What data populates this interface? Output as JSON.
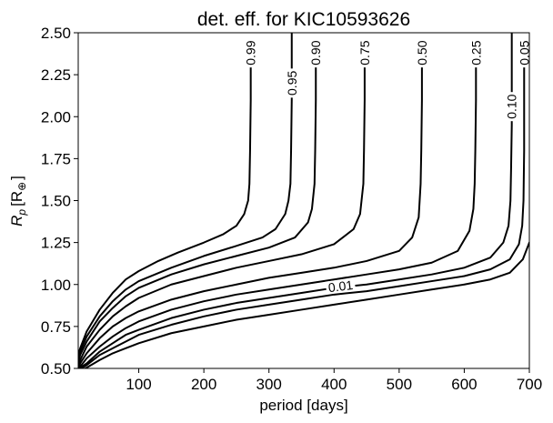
{
  "chart_data": {
    "type": "line",
    "title": "det. eff. for KIC10593626",
    "xlabel": "period [days]",
    "ylabel_text": "R",
    "ylabel_sub": "p",
    "ylabel_unit": "[R",
    "ylabel_unit_sub": "⊕",
    "ylabel_close": "]",
    "xlim": [
      7,
      700
    ],
    "ylim": [
      0.5,
      2.5
    ],
    "x_ticks": [
      100,
      200,
      300,
      400,
      500,
      600,
      700
    ],
    "x_tick_labels": [
      "100",
      "200",
      "300",
      "400",
      "500",
      "600",
      "700"
    ],
    "y_ticks": [
      0.5,
      0.75,
      1.0,
      1.25,
      1.5,
      1.75,
      2.0,
      2.25,
      2.5
    ],
    "y_tick_labels": [
      "0.50",
      "0.75",
      "1.00",
      "1.25",
      "1.50",
      "1.75",
      "2.00",
      "2.25",
      "2.50"
    ],
    "grid": false,
    "series": [
      {
        "name": "0.99",
        "period_asymptote": 272,
        "points": [
          [
            7,
            0.58
          ],
          [
            10,
            0.62
          ],
          [
            20,
            0.72
          ],
          [
            40,
            0.85
          ],
          [
            60,
            0.95
          ],
          [
            80,
            1.03
          ],
          [
            100,
            1.08
          ],
          [
            130,
            1.14
          ],
          [
            160,
            1.19
          ],
          [
            200,
            1.25
          ],
          [
            230,
            1.3
          ],
          [
            250,
            1.35
          ],
          [
            262,
            1.42
          ],
          [
            268,
            1.5
          ],
          [
            270,
            1.6
          ],
          [
            271,
            1.8
          ],
          [
            272,
            2.1
          ],
          [
            272,
            2.3
          ]
        ],
        "label_pos": [
          272,
          2.38
        ]
      },
      {
        "name": "0.95",
        "period_asymptote": 335,
        "points": [
          [
            7,
            0.55
          ],
          [
            10,
            0.6
          ],
          [
            20,
            0.69
          ],
          [
            40,
            0.81
          ],
          [
            60,
            0.9
          ],
          [
            80,
            0.97
          ],
          [
            100,
            1.02
          ],
          [
            150,
            1.1
          ],
          [
            200,
            1.17
          ],
          [
            250,
            1.23
          ],
          [
            290,
            1.28
          ],
          [
            310,
            1.33
          ],
          [
            325,
            1.42
          ],
          [
            330,
            1.5
          ],
          [
            333,
            1.6
          ],
          [
            334,
            1.8
          ],
          [
            335,
            2.1
          ],
          [
            335,
            2.5
          ]
        ],
        "label_pos": [
          335,
          2.2
        ]
      },
      {
        "name": "0.90",
        "period_asymptote": 372,
        "points": [
          [
            7,
            0.54
          ],
          [
            10,
            0.58
          ],
          [
            20,
            0.66
          ],
          [
            40,
            0.78
          ],
          [
            60,
            0.86
          ],
          [
            80,
            0.93
          ],
          [
            100,
            0.98
          ],
          [
            150,
            1.06
          ],
          [
            200,
            1.12
          ],
          [
            250,
            1.17
          ],
          [
            300,
            1.22
          ],
          [
            340,
            1.28
          ],
          [
            360,
            1.37
          ],
          [
            366,
            1.45
          ],
          [
            370,
            1.6
          ],
          [
            371,
            1.8
          ],
          [
            372,
            2.1
          ],
          [
            372,
            2.3
          ]
        ],
        "label_pos": [
          372,
          2.38
        ]
      },
      {
        "name": "0.75",
        "period_asymptote": 447,
        "points": [
          [
            7,
            0.52
          ],
          [
            10,
            0.55
          ],
          [
            20,
            0.63
          ],
          [
            40,
            0.73
          ],
          [
            60,
            0.81
          ],
          [
            80,
            0.87
          ],
          [
            100,
            0.92
          ],
          [
            150,
            1.0
          ],
          [
            200,
            1.05
          ],
          [
            250,
            1.1
          ],
          [
            300,
            1.14
          ],
          [
            350,
            1.18
          ],
          [
            400,
            1.24
          ],
          [
            430,
            1.33
          ],
          [
            440,
            1.42
          ],
          [
            445,
            1.6
          ],
          [
            446,
            1.8
          ],
          [
            447,
            2.1
          ],
          [
            447,
            2.3
          ]
        ],
        "label_pos": [
          447,
          2.38
        ]
      },
      {
        "name": "0.50",
        "period_asymptote": 535,
        "points": [
          [
            7,
            0.5
          ],
          [
            10,
            0.53
          ],
          [
            20,
            0.59
          ],
          [
            40,
            0.68
          ],
          [
            60,
            0.75
          ],
          [
            80,
            0.8
          ],
          [
            100,
            0.84
          ],
          [
            150,
            0.91
          ],
          [
            200,
            0.96
          ],
          [
            250,
            1.0
          ],
          [
            300,
            1.04
          ],
          [
            350,
            1.07
          ],
          [
            400,
            1.1
          ],
          [
            450,
            1.14
          ],
          [
            500,
            1.2
          ],
          [
            520,
            1.28
          ],
          [
            530,
            1.4
          ],
          [
            533,
            1.6
          ],
          [
            534,
            1.8
          ],
          [
            535,
            2.1
          ],
          [
            535,
            2.3
          ]
        ],
        "label_pos": [
          535,
          2.38
        ]
      },
      {
        "name": "0.25",
        "period_asymptote": 618,
        "points": [
          [
            7,
            0.5
          ],
          [
            10,
            0.51
          ],
          [
            20,
            0.56
          ],
          [
            40,
            0.63
          ],
          [
            60,
            0.69
          ],
          [
            80,
            0.74
          ],
          [
            100,
            0.78
          ],
          [
            150,
            0.85
          ],
          [
            200,
            0.9
          ],
          [
            250,
            0.94
          ],
          [
            300,
            0.97
          ],
          [
            350,
            1.0
          ],
          [
            400,
            1.03
          ],
          [
            450,
            1.06
          ],
          [
            500,
            1.09
          ],
          [
            550,
            1.13
          ],
          [
            590,
            1.2
          ],
          [
            608,
            1.32
          ],
          [
            614,
            1.45
          ],
          [
            616,
            1.6
          ],
          [
            617,
            1.8
          ],
          [
            618,
            2.1
          ],
          [
            618,
            2.3
          ]
        ],
        "label_pos": [
          618,
          2.38
        ]
      },
      {
        "name": "0.10",
        "period_asymptote": 673,
        "points": [
          [
            9,
            0.5
          ],
          [
            20,
            0.53
          ],
          [
            40,
            0.6
          ],
          [
            60,
            0.65
          ],
          [
            80,
            0.7
          ],
          [
            100,
            0.73
          ],
          [
            150,
            0.8
          ],
          [
            200,
            0.85
          ],
          [
            250,
            0.89
          ],
          [
            300,
            0.92
          ],
          [
            350,
            0.95
          ],
          [
            400,
            0.98
          ],
          [
            450,
            1.0
          ],
          [
            500,
            1.03
          ],
          [
            550,
            1.06
          ],
          [
            600,
            1.1
          ],
          [
            640,
            1.16
          ],
          [
            660,
            1.25
          ],
          [
            668,
            1.35
          ],
          [
            671,
            1.5
          ],
          [
            672,
            1.7
          ],
          [
            673,
            1.95
          ],
          [
            673,
            2.5
          ]
        ],
        "label_pos": [
          673,
          2.06
        ]
      },
      {
        "name": "0.05",
        "period_asymptote": 692,
        "points": [
          [
            12,
            0.5
          ],
          [
            20,
            0.52
          ],
          [
            40,
            0.58
          ],
          [
            60,
            0.62
          ],
          [
            80,
            0.66
          ],
          [
            100,
            0.7
          ],
          [
            150,
            0.76
          ],
          [
            200,
            0.81
          ],
          [
            250,
            0.85
          ],
          [
            300,
            0.88
          ],
          [
            350,
            0.91
          ],
          [
            400,
            0.94
          ],
          [
            450,
            0.96
          ],
          [
            500,
            0.99
          ],
          [
            550,
            1.02
          ],
          [
            600,
            1.05
          ],
          [
            640,
            1.09
          ],
          [
            670,
            1.15
          ],
          [
            684,
            1.24
          ],
          [
            689,
            1.35
          ],
          [
            691,
            1.5
          ],
          [
            692,
            1.8
          ],
          [
            692,
            2.3
          ]
        ],
        "label_pos": [
          692,
          2.38
        ]
      },
      {
        "name": "0.01",
        "period_asymptote": null,
        "points": [
          [
            18,
            0.5
          ],
          [
            40,
            0.55
          ],
          [
            60,
            0.59
          ],
          [
            80,
            0.62
          ],
          [
            100,
            0.65
          ],
          [
            150,
            0.71
          ],
          [
            200,
            0.75
          ],
          [
            250,
            0.79
          ],
          [
            300,
            0.82
          ],
          [
            350,
            0.85
          ],
          [
            400,
            0.88
          ],
          [
            450,
            0.91
          ],
          [
            500,
            0.94
          ],
          [
            550,
            0.97
          ],
          [
            600,
            1.0
          ],
          [
            640,
            1.03
          ],
          [
            670,
            1.07
          ],
          [
            690,
            1.15
          ],
          [
            700,
            1.25
          ]
        ],
        "label_pos": [
          410,
          0.99
        ]
      }
    ]
  }
}
